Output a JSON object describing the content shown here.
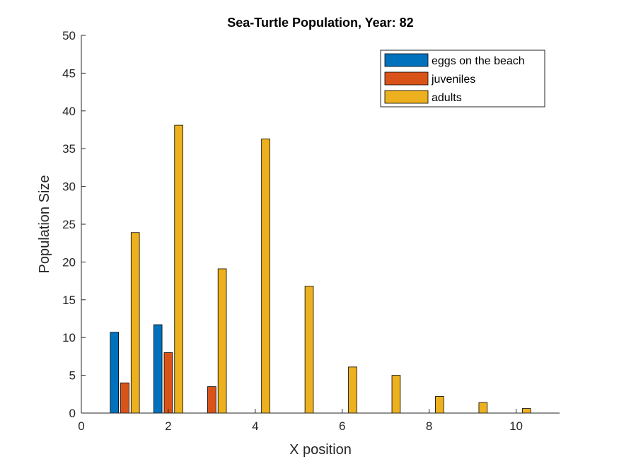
{
  "chart_data": {
    "type": "bar",
    "title": "Sea-Turtle Population, Year: 82",
    "xlabel": "X position",
    "ylabel": "Population Size",
    "xlim": [
      0,
      11
    ],
    "ylim": [
      0,
      50
    ],
    "xticks": [
      0,
      2,
      4,
      6,
      8,
      10
    ],
    "yticks": [
      0,
      5,
      10,
      15,
      20,
      25,
      30,
      35,
      40,
      45,
      50
    ],
    "grid": false,
    "legend_location": "top-right",
    "categories": [
      1,
      2,
      3,
      4,
      5,
      6,
      7,
      8,
      9,
      10
    ],
    "series": [
      {
        "name": "eggs on the beach",
        "color": "#0072BD",
        "values": [
          10.7,
          11.7,
          0,
          0,
          0,
          0,
          0,
          0,
          0,
          0
        ]
      },
      {
        "name": "juveniles",
        "color": "#D95319",
        "values": [
          4.0,
          8.0,
          3.5,
          0,
          0,
          0,
          0,
          0,
          0,
          0
        ]
      },
      {
        "name": "adults",
        "color": "#EDB120",
        "values": [
          23.9,
          38.1,
          19.1,
          36.3,
          16.8,
          6.1,
          5.0,
          2.2,
          1.4,
          0.6
        ]
      }
    ]
  }
}
